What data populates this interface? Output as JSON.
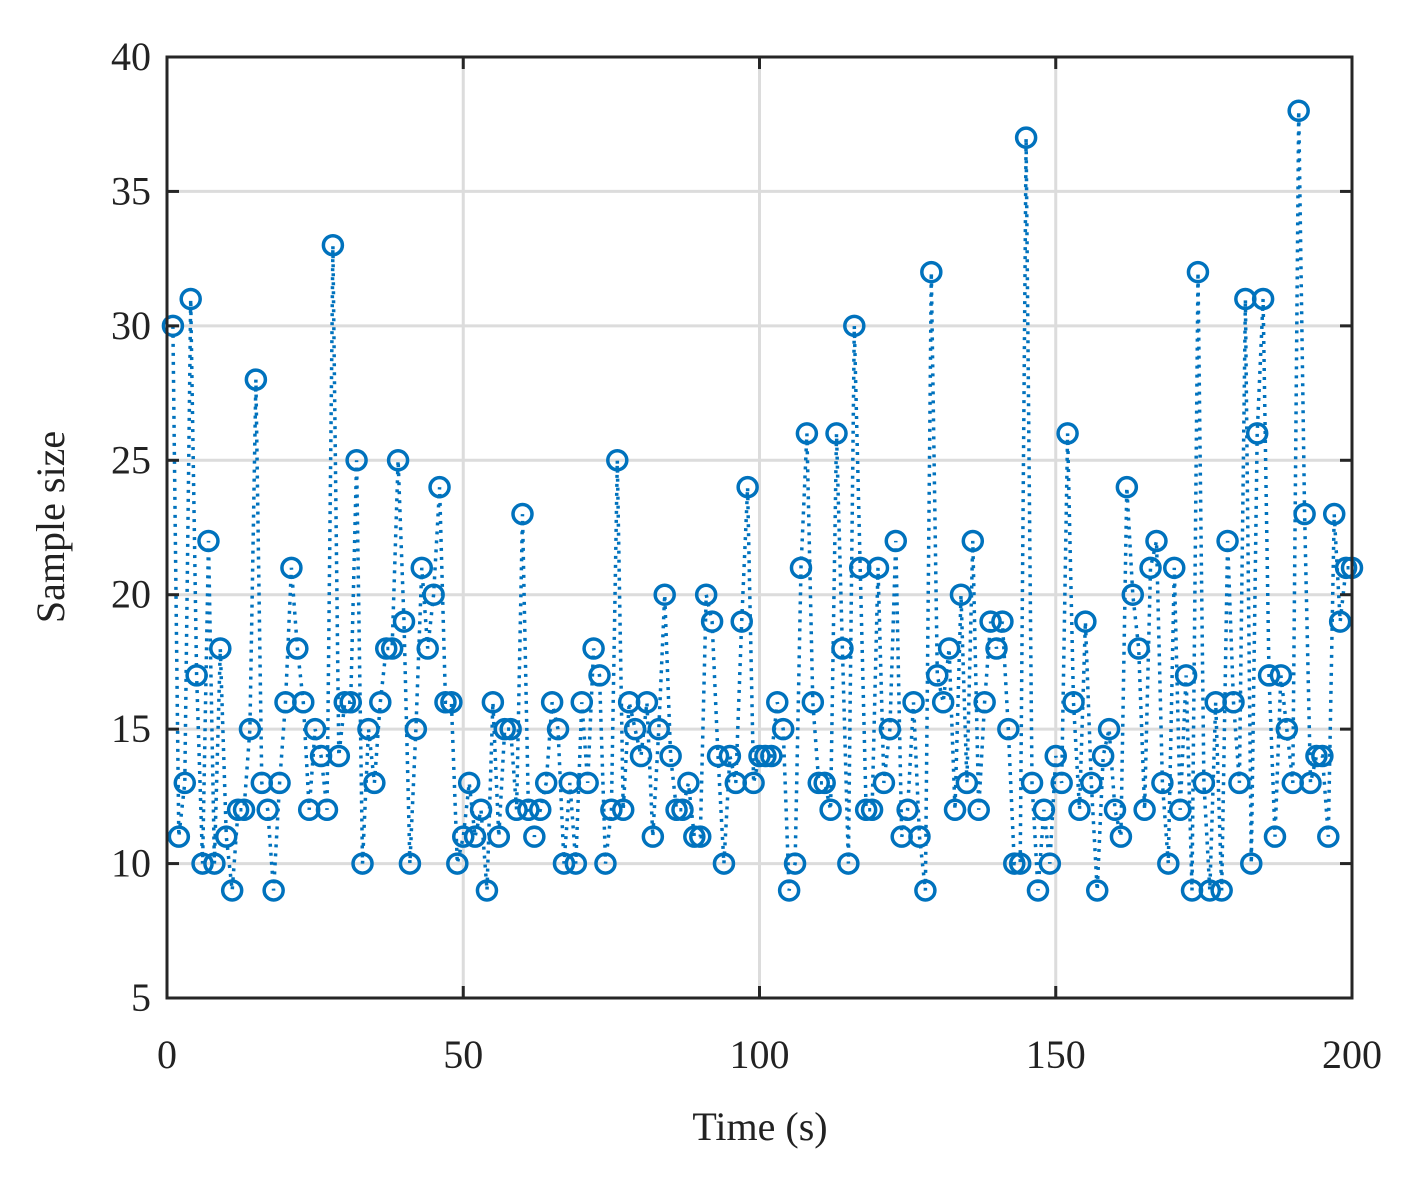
{
  "chart_data": {
    "type": "line",
    "title": "",
    "xlabel": "Time (s)",
    "ylabel": "Sample size",
    "xlim": [
      0,
      200
    ],
    "ylim": [
      5,
      40
    ],
    "xticks": [
      0,
      50,
      100,
      150,
      200
    ],
    "yticks": [
      5,
      10,
      15,
      20,
      25,
      30,
      35,
      40
    ],
    "grid": true,
    "legend": null,
    "marker": "circle",
    "line_style": "dotted",
    "color": "#0072BD",
    "series": [
      {
        "name": "Sample size",
        "x": [
          1,
          2,
          3,
          4,
          5,
          6,
          7,
          8,
          9,
          10,
          11,
          12,
          13,
          14,
          15,
          16,
          17,
          18,
          19,
          20,
          21,
          22,
          23,
          24,
          25,
          26,
          27,
          28,
          29,
          30,
          31,
          32,
          33,
          34,
          35,
          36,
          37,
          38,
          39,
          40,
          41,
          42,
          43,
          44,
          45,
          46,
          47,
          48,
          49,
          50,
          51,
          52,
          53,
          54,
          55,
          56,
          57,
          58,
          59,
          60,
          61,
          62,
          63,
          64,
          65,
          66,
          67,
          68,
          69,
          70,
          71,
          72,
          73,
          74,
          75,
          76,
          77,
          78,
          79,
          80,
          81,
          82,
          83,
          84,
          85,
          86,
          87,
          88,
          89,
          90,
          91,
          92,
          93,
          94,
          95,
          96,
          97,
          98,
          99,
          100,
          101,
          102,
          103,
          104,
          105,
          106,
          107,
          108,
          109,
          110,
          111,
          112,
          113,
          114,
          115,
          116,
          117,
          118,
          119,
          120,
          121,
          122,
          123,
          124,
          125,
          126,
          127,
          128,
          129,
          130,
          131,
          132,
          133,
          134,
          135,
          136,
          137,
          138,
          139,
          140,
          141,
          142,
          143,
          144,
          145,
          146,
          147,
          148,
          149,
          150,
          151,
          152,
          153,
          154,
          155,
          156,
          157,
          158,
          159,
          160,
          161,
          162,
          163,
          164,
          165,
          166,
          167,
          168,
          169,
          170,
          171,
          172,
          173,
          174,
          175,
          176,
          177,
          178,
          179,
          180,
          181,
          182,
          183,
          184,
          185,
          186,
          187,
          188,
          189,
          190,
          191,
          192,
          193,
          194,
          195,
          196,
          197,
          198,
          199,
          200
        ],
        "values": [
          30,
          11,
          13,
          31,
          17,
          10,
          22,
          10,
          18,
          11,
          9,
          12,
          12,
          15,
          28,
          13,
          12,
          9,
          13,
          16,
          21,
          18,
          16,
          12,
          15,
          14,
          12,
          33,
          14,
          16,
          16,
          25,
          10,
          15,
          13,
          16,
          18,
          18,
          25,
          19,
          10,
          15,
          21,
          18,
          20,
          24,
          16,
          16,
          10,
          11,
          13,
          11,
          12,
          9,
          16,
          11,
          15,
          15,
          12,
          23,
          12,
          11,
          12,
          13,
          16,
          15,
          10,
          13,
          10,
          16,
          13,
          18,
          17,
          10,
          12,
          25,
          12,
          16,
          15,
          14,
          16,
          11,
          15,
          20,
          14,
          12,
          12,
          13,
          11,
          11,
          20,
          19,
          14,
          10,
          14,
          13,
          19,
          24,
          13,
          14,
          14,
          14,
          16,
          15,
          9,
          10,
          21,
          26,
          16,
          13,
          13,
          12,
          26,
          18,
          10,
          30,
          21,
          12,
          12,
          21,
          13,
          15,
          22,
          11,
          12,
          16,
          11,
          9,
          32,
          17,
          16,
          18,
          12,
          20,
          13,
          22,
          12,
          16,
          19,
          18,
          19,
          15,
          10,
          10,
          37,
          13,
          9,
          12,
          10,
          14,
          13,
          26,
          16,
          12,
          19,
          13,
          9,
          14,
          15,
          12,
          11,
          24,
          20,
          18,
          12,
          21,
          22,
          13,
          10,
          21,
          12,
          17,
          9,
          32,
          13,
          9,
          16,
          9,
          22,
          16,
          13,
          31,
          10,
          26,
          31,
          17,
          11,
          17,
          15,
          13,
          38,
          23,
          13,
          14,
          14,
          11,
          23,
          19,
          21,
          21
        ]
      }
    ]
  },
  "axes": {
    "x_title": "Time (s)",
    "y_title": "Sample size"
  }
}
